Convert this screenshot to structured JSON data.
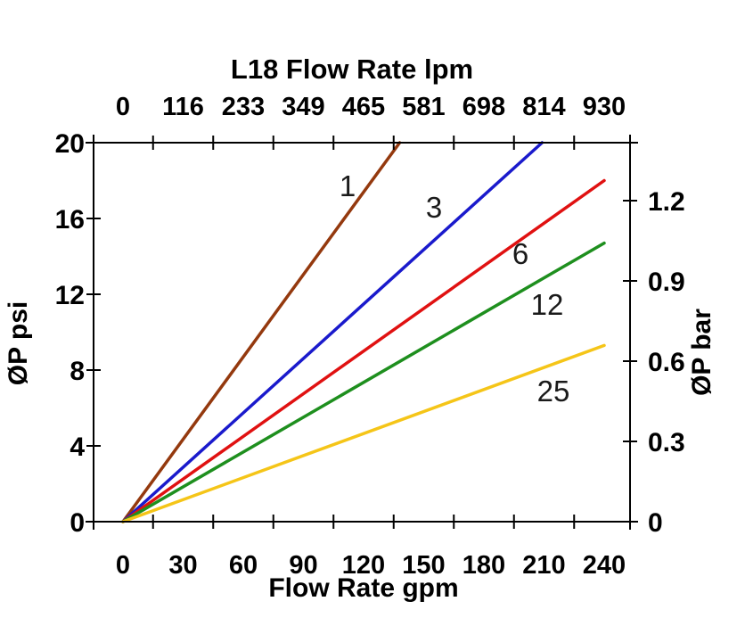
{
  "page": {
    "background": "#ffffff",
    "text_color": "#000000"
  },
  "chart_data": {
    "type": "line",
    "title": "L18 Flow Rate lpm",
    "xlabel": "Flow Rate gpm",
    "ylabel_left": "ØP psi",
    "ylabel_right": "ØP bar",
    "x_axis_bottom": {
      "unit": "gpm",
      "ticks": [
        0,
        30,
        60,
        90,
        120,
        150,
        180,
        210,
        240
      ],
      "range": [
        -15,
        253
      ]
    },
    "x_axis_top": {
      "unit": "lpm",
      "tick_labels": [
        "0",
        "116",
        "233",
        "349",
        "465",
        "581",
        "698",
        "814",
        "930"
      ]
    },
    "y_axis_left": {
      "unit": "psi",
      "ticks": [
        0,
        4,
        8,
        12,
        16,
        20
      ],
      "range": [
        0,
        20
      ]
    },
    "y_axis_right": {
      "unit": "bar",
      "ticks": [
        0,
        0.3,
        0.6,
        0.9,
        1.2
      ]
    },
    "grid": false,
    "legend_position": "inline-labels",
    "series": [
      {
        "name": "1",
        "color": "#94390E",
        "points": [
          {
            "gpm": 0,
            "psi": 0
          },
          {
            "gpm": 138,
            "psi": 20
          }
        ]
      },
      {
        "name": "3",
        "color": "#1A1ACC",
        "points": [
          {
            "gpm": 0,
            "psi": 0
          },
          {
            "gpm": 209,
            "psi": 20
          }
        ]
      },
      {
        "name": "6",
        "color": "#E01111",
        "points": [
          {
            "gpm": 0,
            "psi": 0
          },
          {
            "gpm": 240,
            "psi": 18
          }
        ]
      },
      {
        "name": "12",
        "color": "#1E8F1E",
        "points": [
          {
            "gpm": 0,
            "psi": 0
          },
          {
            "gpm": 240,
            "psi": 14.7
          }
        ]
      },
      {
        "name": "25",
        "color": "#F5C518",
        "points": [
          {
            "gpm": 0,
            "psi": 0
          },
          {
            "gpm": 240,
            "psi": 9.3
          }
        ]
      }
    ]
  }
}
